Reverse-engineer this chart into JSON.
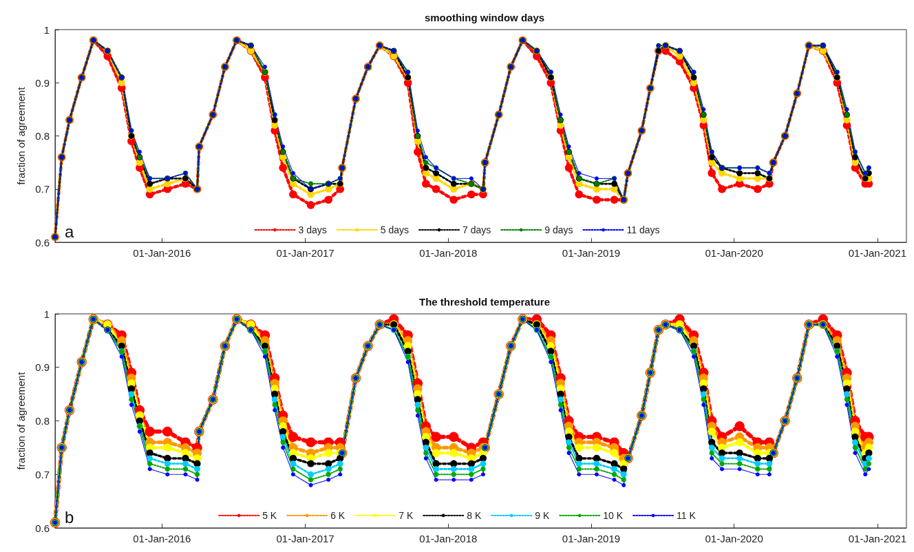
{
  "chart_data": [
    {
      "type": "line",
      "title": "smoothing window days",
      "ylabel": "fraction of agreement",
      "annotations": [
        "a"
      ],
      "marker": "circle",
      "line_style": "dotted",
      "legend": "bottom",
      "grid": false,
      "xlim": [
        "2015-04-03",
        "2021-03-16"
      ],
      "ylim": [
        0.6,
        1
      ],
      "yticks": [
        0.6,
        0.7,
        0.8,
        0.9,
        1
      ],
      "xticks": [
        {
          "value": "2016-01-01",
          "label": "01-Jan-2016"
        },
        {
          "value": "2017-01-01",
          "label": "01-Jan-2017"
        },
        {
          "value": "2018-01-01",
          "label": "01-Jan-2018"
        },
        {
          "value": "2019-01-01",
          "label": "01-Jan-2019"
        },
        {
          "value": "2020-01-01",
          "label": "01-Jan-2020"
        },
        {
          "value": "2021-01-01",
          "label": "01-Jan-2021"
        }
      ],
      "x": [
        "2015-04-03",
        "2015-04-20",
        "2015-05-10",
        "2015-06-10",
        "2015-07-10",
        "2015-08-15",
        "2015-09-20",
        "2015-10-15",
        "2015-11-05",
        "2015-12-01",
        "2016-01-15",
        "2016-03-01",
        "2016-03-31",
        "2016-04-05",
        "2016-05-10",
        "2016-06-10",
        "2016-07-10",
        "2016-08-15",
        "2016-09-20",
        "2016-10-15",
        "2016-11-05",
        "2016-12-01",
        "2017-01-15",
        "2017-03-01",
        "2017-03-31",
        "2017-04-05",
        "2017-05-10",
        "2017-06-10",
        "2017-07-10",
        "2017-08-15",
        "2017-09-20",
        "2017-10-15",
        "2017-11-05",
        "2017-12-01",
        "2018-01-15",
        "2018-03-01",
        "2018-03-31",
        "2018-04-05",
        "2018-05-10",
        "2018-06-10",
        "2018-07-10",
        "2018-08-15",
        "2018-09-20",
        "2018-10-15",
        "2018-11-05",
        "2018-12-01",
        "2019-01-15",
        "2019-03-01",
        "2019-03-25",
        "2019-04-05",
        "2019-05-10",
        "2019-06-01",
        "2019-06-22",
        "2019-07-10",
        "2019-08-15",
        "2019-09-20",
        "2019-10-15",
        "2019-11-05",
        "2019-12-01",
        "2020-01-15",
        "2020-03-01",
        "2020-03-31",
        "2020-04-10",
        "2020-05-10",
        "2020-06-10",
        "2020-07-10",
        "2020-08-15",
        "2020-09-20",
        "2020-10-15",
        "2020-11-05",
        "2020-12-01",
        "2020-12-10"
      ],
      "series": [
        {
          "name": "3 days",
          "color": "#ff0000",
          "values": [
            0.61,
            0.76,
            0.83,
            0.91,
            0.98,
            0.95,
            0.89,
            0.79,
            0.74,
            0.69,
            0.7,
            0.71,
            0.7,
            0.78,
            0.84,
            0.93,
            0.98,
            0.96,
            0.91,
            0.81,
            0.74,
            0.69,
            0.67,
            0.68,
            0.7,
            0.74,
            0.87,
            0.93,
            0.97,
            0.95,
            0.9,
            0.77,
            0.71,
            0.7,
            0.68,
            0.69,
            0.69,
            0.75,
            0.84,
            0.93,
            0.98,
            0.95,
            0.9,
            0.81,
            0.74,
            0.69,
            0.68,
            0.68,
            0.68,
            0.73,
            0.81,
            0.89,
            0.96,
            0.96,
            0.94,
            0.89,
            0.82,
            0.73,
            0.7,
            0.71,
            0.7,
            0.71,
            0.75,
            0.8,
            0.88,
            0.97,
            0.96,
            0.9,
            0.82,
            0.74,
            0.71,
            0.71
          ]
        },
        {
          "name": "5 days",
          "color": "#ffd700",
          "values": [
            0.61,
            0.76,
            0.83,
            0.91,
            0.98,
            0.96,
            0.9,
            0.8,
            0.75,
            0.7,
            0.71,
            0.72,
            0.7,
            0.78,
            0.84,
            0.93,
            0.98,
            0.96,
            0.92,
            0.82,
            0.76,
            0.71,
            0.69,
            0.7,
            0.71,
            0.74,
            0.87,
            0.93,
            0.97,
            0.95,
            0.91,
            0.79,
            0.73,
            0.72,
            0.7,
            0.71,
            0.7,
            0.75,
            0.84,
            0.93,
            0.98,
            0.96,
            0.91,
            0.82,
            0.76,
            0.71,
            0.7,
            0.7,
            0.68,
            0.73,
            0.81,
            0.89,
            0.96,
            0.97,
            0.95,
            0.9,
            0.83,
            0.75,
            0.73,
            0.72,
            0.72,
            0.72,
            0.75,
            0.8,
            0.88,
            0.97,
            0.96,
            0.91,
            0.83,
            0.75,
            0.72,
            0.72
          ]
        },
        {
          "name": "7 days",
          "color": "#000000",
          "values": [
            0.61,
            0.76,
            0.83,
            0.91,
            0.98,
            0.96,
            0.91,
            0.8,
            0.76,
            0.71,
            0.72,
            0.72,
            0.7,
            0.78,
            0.84,
            0.93,
            0.98,
            0.97,
            0.92,
            0.83,
            0.77,
            0.72,
            0.7,
            0.71,
            0.71,
            0.74,
            0.87,
            0.93,
            0.97,
            0.96,
            0.91,
            0.8,
            0.74,
            0.73,
            0.71,
            0.71,
            0.7,
            0.75,
            0.84,
            0.93,
            0.98,
            0.96,
            0.91,
            0.83,
            0.77,
            0.72,
            0.71,
            0.71,
            0.68,
            0.73,
            0.81,
            0.89,
            0.96,
            0.97,
            0.96,
            0.91,
            0.84,
            0.76,
            0.74,
            0.73,
            0.73,
            0.72,
            0.75,
            0.8,
            0.88,
            0.97,
            0.97,
            0.91,
            0.84,
            0.76,
            0.72,
            0.73
          ]
        },
        {
          "name": "9 days",
          "color": "#008000",
          "values": [
            0.61,
            0.76,
            0.83,
            0.91,
            0.98,
            0.96,
            0.91,
            0.81,
            0.76,
            0.72,
            0.72,
            0.73,
            0.7,
            0.78,
            0.84,
            0.93,
            0.98,
            0.97,
            0.92,
            0.84,
            0.77,
            0.72,
            0.71,
            0.71,
            0.72,
            0.74,
            0.87,
            0.93,
            0.97,
            0.96,
            0.92,
            0.8,
            0.75,
            0.74,
            0.72,
            0.71,
            0.7,
            0.75,
            0.84,
            0.93,
            0.98,
            0.96,
            0.92,
            0.83,
            0.77,
            0.72,
            0.71,
            0.72,
            0.68,
            0.73,
            0.81,
            0.89,
            0.97,
            0.97,
            0.96,
            0.92,
            0.84,
            0.77,
            0.74,
            0.74,
            0.74,
            0.73,
            0.75,
            0.8,
            0.88,
            0.97,
            0.97,
            0.92,
            0.84,
            0.77,
            0.73,
            0.74
          ]
        },
        {
          "name": "11 days",
          "color": "#0000ff",
          "values": [
            0.61,
            0.76,
            0.83,
            0.91,
            0.98,
            0.96,
            0.91,
            0.81,
            0.77,
            0.72,
            0.72,
            0.73,
            0.7,
            0.78,
            0.84,
            0.93,
            0.98,
            0.97,
            0.93,
            0.84,
            0.78,
            0.73,
            0.7,
            0.71,
            0.72,
            0.74,
            0.87,
            0.93,
            0.97,
            0.96,
            0.92,
            0.81,
            0.76,
            0.74,
            0.72,
            0.72,
            0.7,
            0.75,
            0.84,
            0.93,
            0.98,
            0.96,
            0.92,
            0.84,
            0.78,
            0.73,
            0.72,
            0.72,
            0.68,
            0.73,
            0.81,
            0.89,
            0.97,
            0.97,
            0.96,
            0.92,
            0.85,
            0.77,
            0.74,
            0.74,
            0.74,
            0.73,
            0.75,
            0.8,
            0.88,
            0.97,
            0.97,
            0.92,
            0.85,
            0.77,
            0.73,
            0.74
          ]
        }
      ]
    },
    {
      "type": "line",
      "title": "The threshold temperature",
      "ylabel": "fraction of agreement",
      "annotations": [
        "b"
      ],
      "marker": "circle",
      "line_style": "dotted",
      "legend": "bottom",
      "grid": false,
      "xlim": [
        "2015-04-03",
        "2021-03-16"
      ],
      "ylim": [
        0.6,
        1
      ],
      "yticks": [
        0.6,
        0.7,
        0.8,
        0.9,
        1
      ],
      "xticks": [
        {
          "value": "2016-01-01",
          "label": "01-Jan-2016"
        },
        {
          "value": "2017-01-01",
          "label": "01-Jan-2017"
        },
        {
          "value": "2018-01-01",
          "label": "01-Jan-2018"
        },
        {
          "value": "2019-01-01",
          "label": "01-Jan-2019"
        },
        {
          "value": "2020-01-01",
          "label": "01-Jan-2020"
        },
        {
          "value": "2021-01-01",
          "label": "01-Jan-2021"
        }
      ],
      "x": [
        "2015-04-03",
        "2015-04-20",
        "2015-05-10",
        "2015-06-10",
        "2015-07-10",
        "2015-08-15",
        "2015-09-20",
        "2015-10-15",
        "2015-11-05",
        "2015-12-01",
        "2016-01-15",
        "2016-03-01",
        "2016-03-31",
        "2016-04-05",
        "2016-05-10",
        "2016-06-10",
        "2016-07-10",
        "2016-08-15",
        "2016-09-20",
        "2016-10-15",
        "2016-11-05",
        "2016-12-01",
        "2017-01-15",
        "2017-03-01",
        "2017-03-31",
        "2017-04-05",
        "2017-05-10",
        "2017-06-10",
        "2017-07-10",
        "2017-08-15",
        "2017-09-20",
        "2017-10-15",
        "2017-11-05",
        "2017-12-01",
        "2018-01-15",
        "2018-03-01",
        "2018-03-31",
        "2018-04-05",
        "2018-05-10",
        "2018-06-10",
        "2018-07-10",
        "2018-08-15",
        "2018-09-20",
        "2018-10-15",
        "2018-11-05",
        "2018-12-01",
        "2019-01-15",
        "2019-03-01",
        "2019-03-25",
        "2019-04-05",
        "2019-05-10",
        "2019-06-01",
        "2019-06-22",
        "2019-07-10",
        "2019-08-15",
        "2019-09-20",
        "2019-10-15",
        "2019-11-05",
        "2019-12-01",
        "2020-01-15",
        "2020-03-01",
        "2020-03-31",
        "2020-04-10",
        "2020-05-10",
        "2020-06-10",
        "2020-07-10",
        "2020-08-15",
        "2020-09-20",
        "2020-10-15",
        "2020-11-05",
        "2020-12-01",
        "2020-12-10"
      ],
      "series": [
        {
          "name": "5 K",
          "color": "#ff0000",
          "values": [
            0.61,
            0.75,
            0.82,
            0.91,
            0.99,
            0.98,
            0.96,
            0.89,
            0.82,
            0.78,
            0.78,
            0.76,
            0.75,
            0.78,
            0.84,
            0.94,
            0.99,
            0.98,
            0.96,
            0.88,
            0.81,
            0.77,
            0.76,
            0.76,
            0.76,
            0.74,
            0.88,
            0.94,
            0.98,
            0.99,
            0.96,
            0.87,
            0.79,
            0.77,
            0.77,
            0.75,
            0.76,
            0.75,
            0.85,
            0.94,
            0.99,
            0.99,
            0.96,
            0.88,
            0.8,
            0.77,
            0.77,
            0.76,
            0.74,
            0.73,
            0.81,
            0.89,
            0.97,
            0.98,
            0.99,
            0.96,
            0.89,
            0.8,
            0.77,
            0.79,
            0.76,
            0.76,
            0.74,
            0.8,
            0.88,
            0.98,
            0.99,
            0.96,
            0.89,
            0.8,
            0.77,
            0.77
          ]
        },
        {
          "name": "6 K",
          "color": "#ff9900",
          "values": [
            0.61,
            0.75,
            0.82,
            0.91,
            0.99,
            0.98,
            0.95,
            0.88,
            0.81,
            0.76,
            0.76,
            0.75,
            0.74,
            0.78,
            0.84,
            0.94,
            0.99,
            0.98,
            0.95,
            0.87,
            0.8,
            0.75,
            0.74,
            0.75,
            0.75,
            0.74,
            0.88,
            0.94,
            0.98,
            0.98,
            0.95,
            0.86,
            0.78,
            0.75,
            0.75,
            0.74,
            0.75,
            0.75,
            0.85,
            0.94,
            0.99,
            0.98,
            0.95,
            0.87,
            0.79,
            0.76,
            0.76,
            0.75,
            0.73,
            0.73,
            0.81,
            0.89,
            0.97,
            0.98,
            0.98,
            0.95,
            0.88,
            0.79,
            0.76,
            0.77,
            0.75,
            0.75,
            0.74,
            0.8,
            0.88,
            0.98,
            0.98,
            0.95,
            0.88,
            0.79,
            0.75,
            0.76
          ]
        },
        {
          "name": "7 K",
          "color": "#ffff00",
          "values": [
            0.61,
            0.75,
            0.82,
            0.91,
            0.99,
            0.98,
            0.94,
            0.87,
            0.81,
            0.75,
            0.75,
            0.74,
            0.73,
            0.78,
            0.84,
            0.94,
            0.99,
            0.98,
            0.94,
            0.86,
            0.79,
            0.74,
            0.73,
            0.74,
            0.74,
            0.74,
            0.88,
            0.94,
            0.98,
            0.98,
            0.94,
            0.85,
            0.77,
            0.74,
            0.74,
            0.73,
            0.74,
            0.75,
            0.85,
            0.94,
            0.99,
            0.98,
            0.94,
            0.86,
            0.78,
            0.75,
            0.75,
            0.74,
            0.72,
            0.73,
            0.81,
            0.89,
            0.97,
            0.98,
            0.98,
            0.94,
            0.87,
            0.78,
            0.75,
            0.76,
            0.74,
            0.74,
            0.74,
            0.8,
            0.88,
            0.98,
            0.98,
            0.94,
            0.87,
            0.78,
            0.74,
            0.75
          ]
        },
        {
          "name": "8 K",
          "color": "#000000",
          "values": [
            0.61,
            0.75,
            0.82,
            0.91,
            0.99,
            0.97,
            0.94,
            0.86,
            0.8,
            0.74,
            0.73,
            0.73,
            0.72,
            0.78,
            0.84,
            0.94,
            0.99,
            0.97,
            0.94,
            0.85,
            0.78,
            0.73,
            0.72,
            0.72,
            0.73,
            0.74,
            0.88,
            0.94,
            0.98,
            0.98,
            0.93,
            0.84,
            0.76,
            0.72,
            0.72,
            0.72,
            0.73,
            0.75,
            0.85,
            0.94,
            0.99,
            0.98,
            0.93,
            0.85,
            0.77,
            0.73,
            0.73,
            0.72,
            0.71,
            0.73,
            0.81,
            0.89,
            0.97,
            0.98,
            0.97,
            0.94,
            0.86,
            0.76,
            0.74,
            0.74,
            0.73,
            0.73,
            0.74,
            0.8,
            0.88,
            0.98,
            0.98,
            0.94,
            0.86,
            0.77,
            0.73,
            0.74
          ]
        },
        {
          "name": "9 K",
          "color": "#00ccff",
          "values": [
            0.61,
            0.75,
            0.82,
            0.91,
            0.99,
            0.97,
            0.93,
            0.85,
            0.79,
            0.73,
            0.72,
            0.72,
            0.71,
            0.78,
            0.84,
            0.94,
            0.99,
            0.97,
            0.93,
            0.84,
            0.77,
            0.72,
            0.7,
            0.71,
            0.72,
            0.74,
            0.88,
            0.94,
            0.98,
            0.97,
            0.92,
            0.83,
            0.75,
            0.71,
            0.71,
            0.71,
            0.72,
            0.75,
            0.85,
            0.94,
            0.99,
            0.97,
            0.92,
            0.84,
            0.76,
            0.72,
            0.72,
            0.71,
            0.7,
            0.73,
            0.81,
            0.89,
            0.97,
            0.98,
            0.97,
            0.93,
            0.85,
            0.75,
            0.73,
            0.73,
            0.72,
            0.72,
            0.74,
            0.8,
            0.88,
            0.98,
            0.98,
            0.93,
            0.85,
            0.76,
            0.72,
            0.73
          ]
        },
        {
          "name": "10 K",
          "color": "#00aa00",
          "values": [
            0.61,
            0.75,
            0.82,
            0.91,
            0.99,
            0.97,
            0.93,
            0.84,
            0.79,
            0.72,
            0.71,
            0.71,
            0.7,
            0.78,
            0.84,
            0.94,
            0.99,
            0.97,
            0.93,
            0.83,
            0.76,
            0.71,
            0.69,
            0.7,
            0.71,
            0.74,
            0.88,
            0.94,
            0.98,
            0.97,
            0.92,
            0.82,
            0.74,
            0.7,
            0.7,
            0.7,
            0.71,
            0.75,
            0.85,
            0.94,
            0.99,
            0.97,
            0.92,
            0.83,
            0.75,
            0.71,
            0.71,
            0.7,
            0.69,
            0.73,
            0.81,
            0.89,
            0.97,
            0.98,
            0.97,
            0.93,
            0.84,
            0.74,
            0.72,
            0.72,
            0.71,
            0.71,
            0.74,
            0.8,
            0.88,
            0.98,
            0.98,
            0.93,
            0.84,
            0.75,
            0.71,
            0.72
          ]
        },
        {
          "name": "11 K",
          "color": "#0000ff",
          "values": [
            0.61,
            0.75,
            0.82,
            0.91,
            0.99,
            0.97,
            0.92,
            0.83,
            0.78,
            0.71,
            0.7,
            0.7,
            0.69,
            0.78,
            0.84,
            0.94,
            0.99,
            0.97,
            0.92,
            0.82,
            0.75,
            0.7,
            0.68,
            0.69,
            0.7,
            0.74,
            0.88,
            0.94,
            0.98,
            0.97,
            0.91,
            0.81,
            0.73,
            0.69,
            0.69,
            0.69,
            0.7,
            0.75,
            0.85,
            0.94,
            0.99,
            0.97,
            0.91,
            0.82,
            0.74,
            0.7,
            0.7,
            0.69,
            0.68,
            0.73,
            0.81,
            0.89,
            0.97,
            0.98,
            0.97,
            0.92,
            0.83,
            0.73,
            0.71,
            0.71,
            0.7,
            0.7,
            0.74,
            0.8,
            0.88,
            0.98,
            0.98,
            0.92,
            0.83,
            0.74,
            0.7,
            0.71
          ]
        }
      ]
    }
  ]
}
